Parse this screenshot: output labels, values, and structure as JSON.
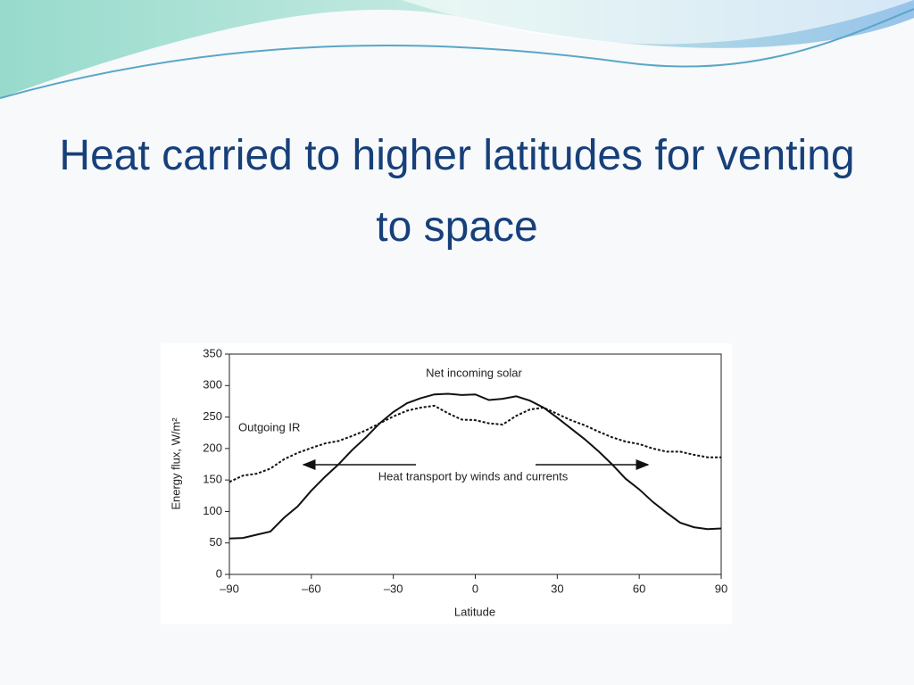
{
  "title": "Heat carried to higher latitudes for venting to space",
  "chart_data": {
    "type": "line",
    "xlabel": "Latitude",
    "ylabel": "Energy flux, W/m²",
    "annotations": [
      "Heat transport by winds and currents"
    ],
    "x": [
      -90,
      -85,
      -80,
      -75,
      -70,
      -65,
      -60,
      -55,
      -50,
      -45,
      -40,
      -35,
      -30,
      -25,
      -20,
      -15,
      -10,
      -5,
      0,
      5,
      10,
      15,
      20,
      25,
      30,
      35,
      40,
      45,
      50,
      55,
      60,
      65,
      70,
      75,
      80,
      85,
      90
    ],
    "series": [
      {
        "name": "Net incoming solar",
        "color": "#111111",
        "dash": "solid",
        "values": [
          57,
          58,
          63,
          68,
          90,
          108,
          133,
          155,
          175,
          198,
          218,
          240,
          258,
          272,
          280,
          286,
          287,
          285,
          286,
          277,
          279,
          283,
          276,
          265,
          249,
          232,
          215,
          196,
          175,
          152,
          135,
          115,
          98,
          82,
          75,
          72,
          73
        ]
      },
      {
        "name": "Outgoing IR",
        "color": "#111111",
        "dash": "dashed",
        "values": [
          147,
          157,
          160,
          168,
          183,
          193,
          201,
          208,
          212,
          220,
          229,
          240,
          251,
          260,
          265,
          268,
          256,
          246,
          245,
          240,
          238,
          252,
          262,
          265,
          255,
          245,
          237,
          227,
          218,
          211,
          207,
          200,
          195,
          195,
          190,
          186,
          186
        ]
      }
    ],
    "xlim": [
      -90,
      90
    ],
    "xticks": [
      {
        "value": -90,
        "label": "–90"
      },
      {
        "value": -60,
        "label": "–60"
      },
      {
        "value": -30,
        "label": "–30"
      },
      0,
      30,
      60,
      90
    ],
    "ylim": [
      0,
      350
    ],
    "yticks": [
      0,
      50,
      100,
      150,
      200,
      250,
      300,
      350
    ],
    "grid": false
  }
}
